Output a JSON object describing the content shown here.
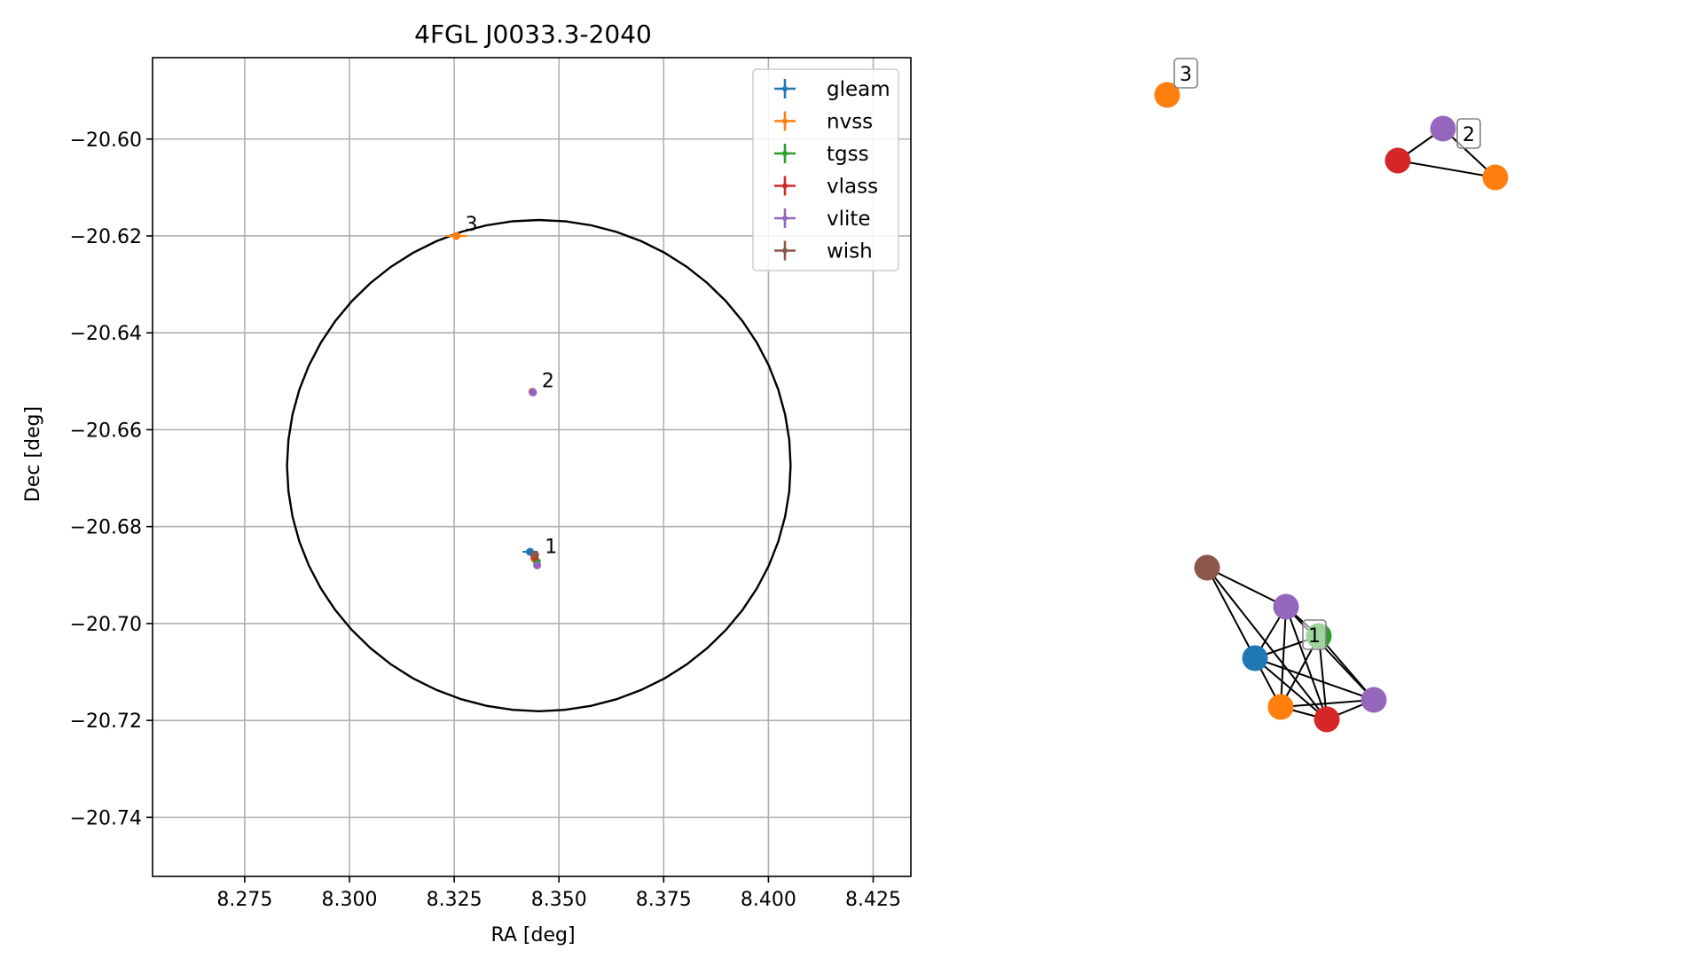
{
  "chart_data": [
    {
      "type": "scatter",
      "title": "4FGL J0033.3-2040",
      "xlabel": "RA [deg]",
      "ylabel": "Dec [deg]",
      "xlim": [
        8.253,
        8.434
      ],
      "ylim": [
        -20.7522,
        -20.5832
      ],
      "xticks": [
        8.275,
        8.3,
        8.325,
        8.35,
        8.375,
        8.4,
        8.425
      ],
      "xtick_labels": [
        "8.275",
        "8.300",
        "8.325",
        "8.350",
        "8.375",
        "8.400",
        "8.425"
      ],
      "yticks": [
        -20.6,
        -20.62,
        -20.64,
        -20.66,
        -20.68,
        -20.7,
        -20.72,
        -20.74
      ],
      "ytick_labels": [
        "−20.60",
        "−20.62",
        "−20.64",
        "−20.66",
        "−20.68",
        "−20.70",
        "−20.72",
        "−20.74"
      ],
      "grid": true,
      "legend_position": "top-right",
      "ellipse": {
        "center": [
          8.3452,
          -20.6674
        ],
        "semi_axis_x_deg": 0.0601,
        "semi_axis_y_deg": 0.0507,
        "color": "#000000"
      },
      "series": [
        {
          "name": "gleam",
          "color": "#1f77b4",
          "points": [
            {
              "x": 8.3431,
              "y": -20.6852,
              "xerr": 0.0018,
              "yerr": 0.0006
            }
          ]
        },
        {
          "name": "nvss",
          "color": "#ff7f0e",
          "points": [
            {
              "x": 8.3255,
              "y": -20.62,
              "xerr": 0.0025,
              "yerr": 0.0008
            },
            {
              "x": 8.3441,
              "y": -20.6866,
              "xerr": 0.0003,
              "yerr": 0.0003
            }
          ]
        },
        {
          "name": "tgss",
          "color": "#2ca02c",
          "points": [
            {
              "x": 8.3447,
              "y": -20.6872,
              "xerr": 0.0003,
              "yerr": 0.0003
            }
          ]
        },
        {
          "name": "vlass",
          "color": "#d62728",
          "points": [
            {
              "x": 8.3442,
              "y": -20.6862,
              "xerr": 0.0002,
              "yerr": 0.0002
            },
            {
              "x": 8.3437,
              "y": -20.6522,
              "xerr": 0.0002,
              "yerr": 0.0002
            }
          ]
        },
        {
          "name": "vlite",
          "color": "#9467bd",
          "points": [
            {
              "x": 8.3448,
              "y": -20.688,
              "xerr": 0.0004,
              "yerr": 0.0004
            },
            {
              "x": 8.3438,
              "y": -20.6523,
              "xerr": 0.0003,
              "yerr": 0.0003
            }
          ]
        },
        {
          "name": "wish",
          "color": "#8c564b",
          "points": [
            {
              "x": 8.3443,
              "y": -20.6858,
              "xerr": 0.0004,
              "yerr": 0.0004
            }
          ]
        }
      ],
      "annotations": [
        {
          "text": "3",
          "x": 8.3255,
          "y": -20.62
        },
        {
          "text": "2",
          "x": 8.3438,
          "y": -20.6523
        },
        {
          "text": "1",
          "x": 8.3445,
          "y": -20.6866
        }
      ]
    },
    {
      "type": "network",
      "clusters": [
        {
          "label": "3",
          "nodes": [
            {
              "survey": "nvss",
              "color": "#ff7f0e"
            }
          ],
          "edges": []
        },
        {
          "label": "2",
          "nodes": [
            {
              "survey": "vlite",
              "color": "#9467bd"
            },
            {
              "survey": "vlass",
              "color": "#d62728"
            },
            {
              "survey": "nvss",
              "color": "#ff7f0e"
            }
          ],
          "edges": [
            [
              0,
              1
            ],
            [
              0,
              2
            ],
            [
              1,
              2
            ]
          ]
        },
        {
          "label": "1",
          "nodes": [
            {
              "survey": "wish",
              "color": "#8c564b"
            },
            {
              "survey": "vlite",
              "color": "#9467bd"
            },
            {
              "survey": "tgss",
              "color": "#2ca02c"
            },
            {
              "survey": "gleam",
              "color": "#1f77b4"
            },
            {
              "survey": "vlite",
              "color": "#9467bd"
            },
            {
              "survey": "nvss",
              "color": "#ff7f0e"
            },
            {
              "survey": "vlass",
              "color": "#d62728"
            }
          ],
          "edges": [
            [
              0,
              1
            ],
            [
              0,
              3
            ],
            [
              0,
              6
            ],
            [
              1,
              2
            ],
            [
              1,
              3
            ],
            [
              1,
              5
            ],
            [
              1,
              6
            ],
            [
              1,
              4
            ],
            [
              2,
              3
            ],
            [
              2,
              4
            ],
            [
              2,
              5
            ],
            [
              2,
              6
            ],
            [
              3,
              4
            ],
            [
              3,
              5
            ],
            [
              3,
              6
            ],
            [
              4,
              5
            ],
            [
              4,
              6
            ],
            [
              5,
              6
            ]
          ]
        }
      ]
    }
  ]
}
